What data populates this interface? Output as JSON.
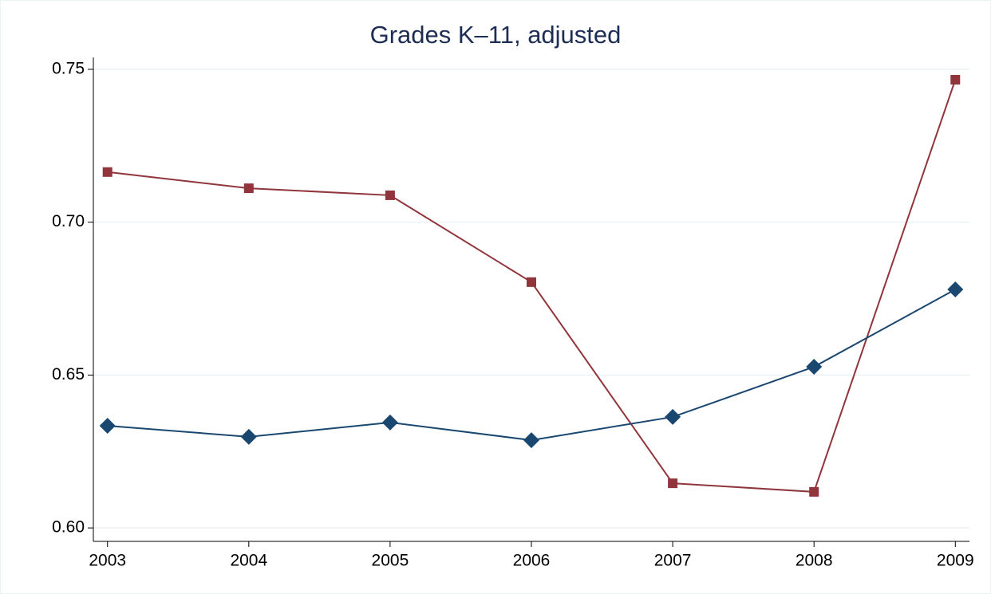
{
  "chart_data": {
    "type": "line",
    "title": "Grades K–11, adjusted",
    "x": [
      2003,
      2004,
      2005,
      2006,
      2007,
      2008,
      2009
    ],
    "series": [
      {
        "color": "#90353b",
        "marker": "square",
        "values": [
          0.7164,
          0.7111,
          0.7088,
          0.6804,
          0.6146,
          0.6118,
          0.7466
        ]
      },
      {
        "color": "#1a476f",
        "marker": "diamond",
        "values": [
          0.6334,
          0.6298,
          0.6345,
          0.6287,
          0.6363,
          0.6527,
          0.678
        ]
      }
    ],
    "xlim": [
      2002.9,
      2009.1
    ],
    "xticks": [
      2003,
      2004,
      2005,
      2006,
      2007,
      2008,
      2009
    ],
    "ylim": [
      0.5956,
      0.7539
    ],
    "yticks": [
      {
        "value": 0.6,
        "label": "0.60"
      },
      {
        "value": 0.65,
        "label": "0.65"
      },
      {
        "value": 0.7,
        "label": "0.70"
      },
      {
        "value": 0.75,
        "label": "0.75"
      }
    ],
    "grid": true
  }
}
